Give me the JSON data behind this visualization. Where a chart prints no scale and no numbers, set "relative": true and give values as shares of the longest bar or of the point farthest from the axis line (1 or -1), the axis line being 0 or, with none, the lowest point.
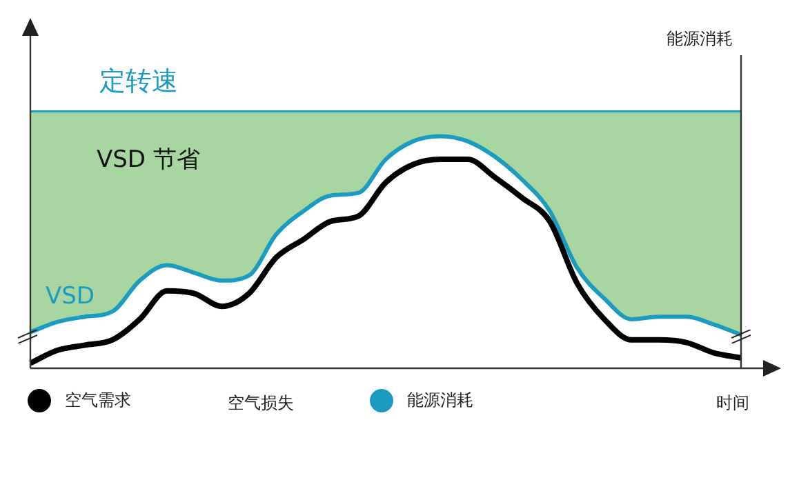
{
  "chart_data": {
    "type": "line",
    "relative": true,
    "xlabel": "时间",
    "ylabel": "能源消耗",
    "legend": "bottom",
    "marker": "none",
    "line_style": "solid",
    "annotations": [
      "定转速",
      "VSD 节省",
      "VSD",
      "空气损失"
    ],
    "categories": [
      null,
      null,
      null,
      null,
      null,
      null,
      null,
      null,
      null,
      null,
      null,
      null,
      null,
      null,
      null,
      null,
      null,
      null,
      null,
      null,
      null,
      null,
      null,
      null,
      null,
      null,
      null
    ],
    "series": [
      {
        "color": "#1a9bbf",
        "values": [
          1,
          1,
          1,
          1,
          1,
          1,
          1,
          1,
          1,
          1,
          1,
          1,
          1,
          1,
          1,
          1,
          1,
          1,
          1,
          1,
          1,
          1,
          1,
          1,
          1,
          1,
          1
        ]
      },
      {
        "type": "area",
        "color": "#a8d6a0",
        "values": [
          1,
          1,
          1,
          1,
          1,
          1,
          1,
          1,
          1,
          1,
          1,
          1,
          1,
          1,
          1,
          1,
          1,
          1,
          1,
          1,
          1,
          1,
          1,
          1,
          1,
          1,
          1
        ]
      },
      {
        "name": "能源消耗",
        "color": "#1a9bbf",
        "values": [
          0.14,
          0.18,
          0.2,
          0.22,
          0.34,
          0.4,
          0.37,
          0.34,
          0.36,
          0.52,
          0.61,
          0.67,
          0.68,
          0.81,
          0.88,
          0.9,
          0.88,
          0.82,
          0.73,
          0.61,
          0.39,
          0.27,
          0.19,
          0.2,
          0.2,
          0.17,
          0.13
        ]
      },
      {
        "name": "空气需求",
        "color": "#000000",
        "values": [
          0.02,
          0.07,
          0.09,
          0.11,
          0.19,
          0.3,
          0.29,
          0.24,
          0.29,
          0.43,
          0.5,
          0.57,
          0.59,
          0.72,
          0.79,
          0.81,
          0.81,
          0.74,
          0.66,
          0.57,
          0.33,
          0.19,
          0.11,
          0.11,
          0.1,
          0.06,
          0.04
        ]
      }
    ]
  }
}
